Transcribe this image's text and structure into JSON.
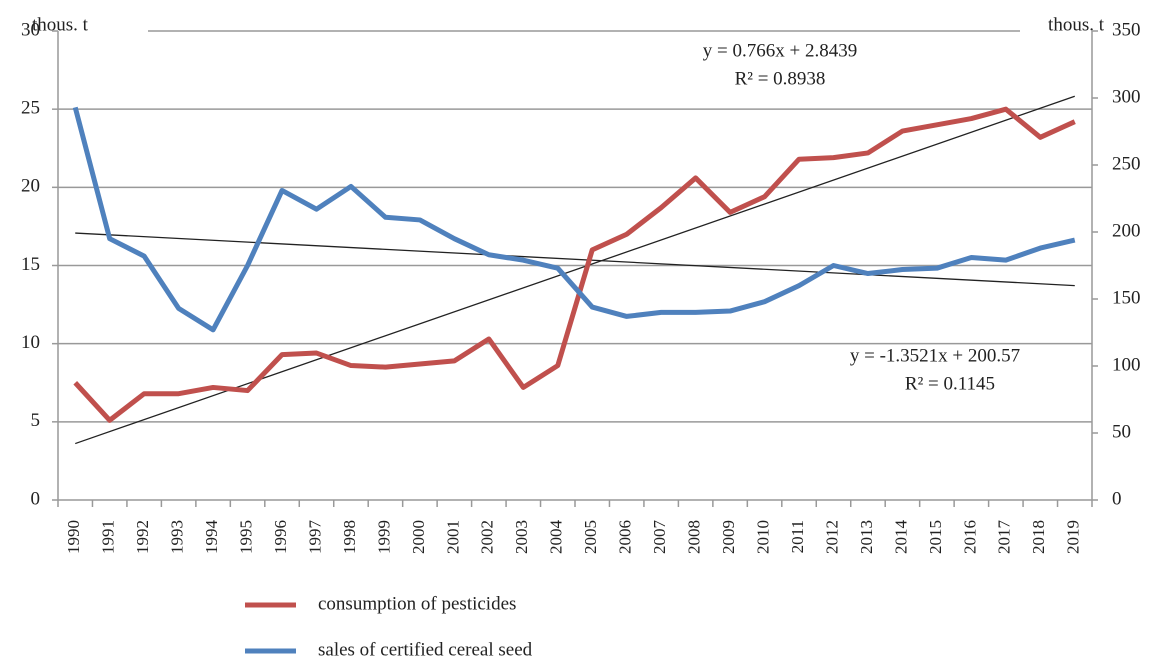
{
  "chart_data": {
    "type": "line",
    "categories": [
      "1990",
      "1991",
      "1992",
      "1993",
      "1994",
      "1995",
      "1996",
      "1997",
      "1998",
      "1999",
      "2000",
      "2001",
      "2002",
      "2003",
      "2004",
      "2005",
      "2006",
      "2007",
      "2008",
      "2009",
      "2010",
      "2011",
      "2012",
      "2013",
      "2014",
      "2015",
      "2016",
      "2017",
      "2018",
      "2019"
    ],
    "series": [
      {
        "name": "consumption of pesticides",
        "color": "#c0504d",
        "axis": "y",
        "values": [
          7.5,
          5.1,
          6.8,
          6.8,
          7.2,
          7.0,
          9.3,
          9.4,
          8.6,
          8.5,
          8.7,
          8.9,
          10.3,
          7.2,
          8.6,
          16.0,
          17.0,
          18.7,
          20.6,
          18.4,
          19.4,
          21.8,
          21.9,
          22.2,
          23.6,
          24.0,
          24.4,
          25.0,
          23.2,
          24.2
        ]
      },
      {
        "name": "sales of certified cereal seed",
        "color": "#4f81bd",
        "axis": "y2",
        "values": [
          293,
          195,
          182,
          143,
          127,
          175,
          231,
          217,
          234,
          211,
          209,
          195,
          183,
          179,
          173,
          144,
          137,
          140,
          140,
          141,
          148,
          160,
          175,
          169,
          172,
          173,
          181,
          179,
          188,
          194
        ]
      }
    ],
    "ylabel": "thous. t",
    "y2label": "thous. t",
    "ylim": [
      0,
      30
    ],
    "yticks": [
      0,
      5,
      10,
      15,
      20,
      25,
      30
    ],
    "y2lim": [
      0,
      350
    ],
    "y2ticks": [
      0,
      50,
      100,
      150,
      200,
      250,
      300,
      350
    ],
    "grid": true,
    "trendlines": [
      {
        "axis": "y",
        "equation": "y = 0.766x + 2.8439",
        "r2": "R² = 0.8938"
      },
      {
        "axis": "y2",
        "equation": "y = -1.3521x + 200.57",
        "r2": "R² = 0.1145"
      }
    ]
  }
}
